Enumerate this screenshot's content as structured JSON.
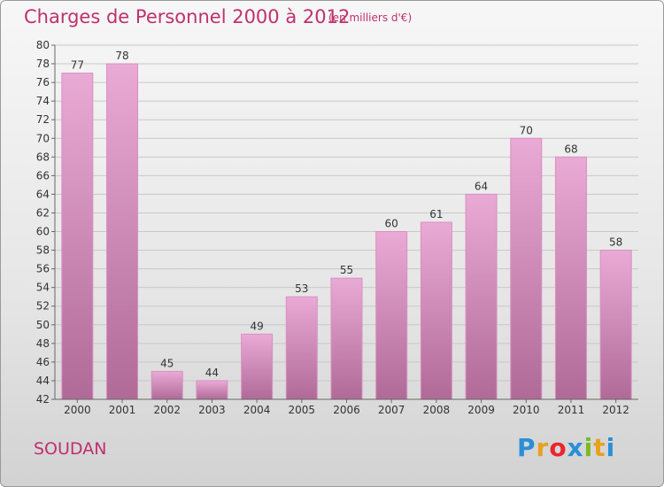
{
  "header": {
    "title": "Charges de Personnel 2000 à 2012",
    "subtitle": "(en milliers d'€)"
  },
  "footer": {
    "commune": "SOUDAN",
    "logo": {
      "letters": [
        "P",
        "r",
        "o",
        "x",
        "i",
        "t",
        "i"
      ],
      "colors": [
        "#2a8fd8",
        "#e6a21e",
        "#e9262c",
        "#2a8fd8",
        "#7ab929",
        "#e6a21e",
        "#2a8fd8"
      ]
    }
  },
  "colors": {
    "bar_light": "#eaaad6",
    "bar_dark": "#b06a98",
    "accent": "#c0306e"
  },
  "chart_data": {
    "type": "bar",
    "title": "Charges de Personnel 2000 à 2012",
    "subtitle": "(en milliers d'€)",
    "xlabel": "",
    "ylabel": "",
    "categories": [
      "2000",
      "2001",
      "2002",
      "2003",
      "2004",
      "2005",
      "2006",
      "2007",
      "2008",
      "2009",
      "2010",
      "2011",
      "2012"
    ],
    "values": [
      77,
      78,
      45,
      44,
      49,
      53,
      55,
      60,
      61,
      64,
      70,
      68,
      58
    ],
    "ylim": [
      42,
      80
    ],
    "yticks": [
      42,
      44,
      46,
      48,
      50,
      52,
      54,
      56,
      58,
      60,
      62,
      64,
      66,
      68,
      70,
      72,
      74,
      76,
      78,
      80
    ],
    "grid": "horizontal",
    "legend": "none"
  }
}
